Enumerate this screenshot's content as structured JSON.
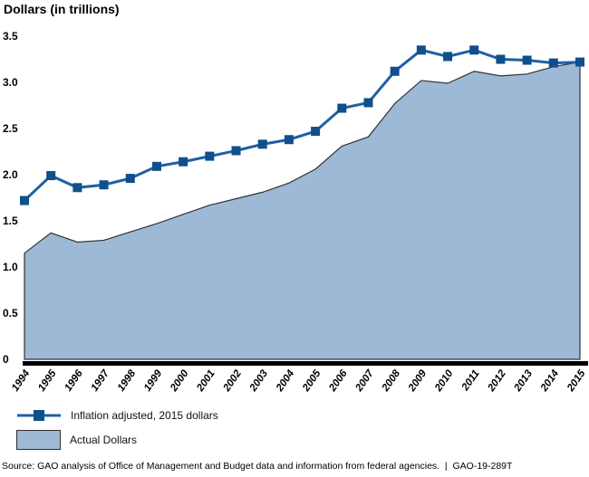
{
  "chart_data": {
    "type": "area",
    "title": "Dollars (in trillions)",
    "x": [
      1994,
      1995,
      1996,
      1997,
      1998,
      1999,
      2000,
      2001,
      2002,
      2003,
      2004,
      2005,
      2006,
      2007,
      2008,
      2009,
      2010,
      2011,
      2012,
      2013,
      2014,
      2015
    ],
    "series": [
      {
        "name": "Inflation adjusted, 2015 dollars",
        "kind": "line",
        "marker": "square",
        "values": [
          1.72,
          1.99,
          1.86,
          1.89,
          1.96,
          2.09,
          2.14,
          2.2,
          2.26,
          2.33,
          2.38,
          2.47,
          2.72,
          2.78,
          3.12,
          3.35,
          3.28,
          3.35,
          3.25,
          3.24,
          3.21,
          3.22
        ]
      },
      {
        "name": "Actual Dollars",
        "kind": "area",
        "values": [
          1.15,
          1.37,
          1.27,
          1.29,
          1.38,
          1.47,
          1.57,
          1.67,
          1.74,
          1.81,
          1.91,
          2.06,
          2.31,
          2.41,
          2.77,
          3.02,
          2.99,
          3.12,
          3.07,
          3.09,
          3.17,
          3.22
        ]
      }
    ],
    "xlabel": "",
    "ylabel": "Dollars (in trillions)",
    "ylim": [
      0,
      3.5
    ],
    "ytick_labels": [
      "0",
      "0.5",
      "1.0",
      "1.5",
      "2.0",
      "2.5",
      "3.0",
      "3.5"
    ],
    "grid": false,
    "legend_position": "bottom-left",
    "colors": {
      "line": "#1e60a4",
      "marker": "#0f4f8c",
      "area_fill": "#9db9d6",
      "area_stroke": "#333333",
      "axis": "#000000"
    }
  },
  "legend": {
    "line_label": "Inflation adjusted, 2015 dollars",
    "area_label": "Actual Dollars"
  },
  "source": {
    "text": "Source: GAO analysis of Office of Management and Budget data and information from federal agencies.  |  GAO-19-289T"
  }
}
